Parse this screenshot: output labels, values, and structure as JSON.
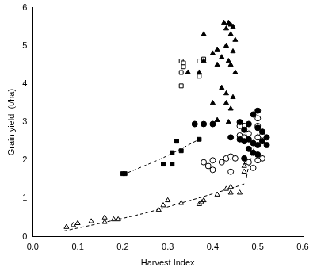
{
  "chart_data": {
    "type": "scatter",
    "x_label": "Harvest Index",
    "y_label": "Grain yield  (t/ha)",
    "xlim": [
      0,
      0.6
    ],
    "xticks": [
      {
        "value": 0,
        "label": "0.0"
      },
      0.1,
      0.2,
      0.3,
      0.4,
      0.5,
      0.6
    ],
    "ylim": [
      0,
      6
    ],
    "yticks": [
      0,
      1,
      2,
      3,
      4,
      5,
      6
    ],
    "grid": false,
    "series": [
      {
        "type": "scatter",
        "marker": "triangle-filled",
        "color": "#000000",
        "x": [
          0.425,
          0.435,
          0.44,
          0.445,
          0.43,
          0.38,
          0.44,
          0.45,
          0.43,
          0.41,
          0.445,
          0.42,
          0.435,
          0.38,
          0.41,
          0.44,
          0.37,
          0.45,
          0.42,
          0.43,
          0.445,
          0.4,
          0.43,
          0.44,
          0.41,
          0.435,
          0.345,
          0.4
        ],
        "values": [
          5.6,
          5.6,
          5.55,
          5.5,
          5.45,
          5.3,
          5.3,
          5.15,
          5.0,
          4.9,
          4.85,
          4.7,
          4.6,
          4.6,
          4.5,
          4.5,
          4.3,
          4.3,
          3.9,
          3.75,
          3.65,
          3.5,
          3.5,
          3.35,
          3.05,
          3.0,
          4.3,
          4.8
        ]
      },
      {
        "type": "scatter",
        "marker": "square-open",
        "color": "#000000",
        "x": [
          0.33,
          0.335,
          0.335,
          0.33,
          0.33,
          0.37,
          0.38,
          0.37
        ],
        "values": [
          4.6,
          4.55,
          4.45,
          4.3,
          3.95,
          4.6,
          4.65,
          4.2
        ]
      },
      {
        "type": "scatter",
        "marker": "circle-filled",
        "color": "#000000",
        "x": [
          0.36,
          0.38,
          0.4,
          0.46,
          0.48,
          0.49,
          0.5,
          0.47,
          0.5,
          0.44,
          0.46,
          0.47,
          0.48,
          0.49,
          0.5,
          0.51,
          0.52,
          0.48,
          0.49,
          0.5,
          0.47,
          0.52,
          0.51
        ],
        "values": [
          2.95,
          2.95,
          2.95,
          3.0,
          2.95,
          3.2,
          3.3,
          2.8,
          2.85,
          2.6,
          2.55,
          2.5,
          2.55,
          2.45,
          2.4,
          2.5,
          2.4,
          2.3,
          2.2,
          2.15,
          2.05,
          2.6,
          2.75
        ]
      },
      {
        "type": "scatter",
        "marker": "circle-open",
        "color": "#000000",
        "x": [
          0.38,
          0.39,
          0.4,
          0.4,
          0.42,
          0.43,
          0.44,
          0.45,
          0.44,
          0.46,
          0.47,
          0.47,
          0.48,
          0.5,
          0.5,
          0.51,
          0.5,
          0.51,
          0.5,
          0.48,
          0.49,
          0.46
        ],
        "values": [
          1.95,
          1.85,
          1.75,
          2.0,
          1.95,
          2.05,
          2.1,
          2.05,
          1.7,
          2.65,
          2.6,
          2.9,
          2.7,
          3.1,
          2.9,
          2.65,
          2.6,
          2.05,
          2.0,
          1.95,
          1.8,
          2.9
        ]
      },
      {
        "type": "scatter",
        "marker": "square-filled",
        "color": "#000000",
        "x": [
          0.2,
          0.205,
          0.29,
          0.31,
          0.31,
          0.33,
          0.32,
          0.37
        ],
        "values": [
          1.65,
          1.65,
          1.9,
          1.9,
          2.2,
          2.25,
          2.5,
          2.55
        ]
      },
      {
        "type": "scatter",
        "marker": "triangle-open",
        "color": "#000000",
        "x": [
          0.075,
          0.09,
          0.1,
          0.13,
          0.16,
          0.16,
          0.18,
          0.19,
          0.28,
          0.29,
          0.3,
          0.33,
          0.37,
          0.375,
          0.38,
          0.41,
          0.43,
          0.44,
          0.44,
          0.47,
          0.47,
          0.475,
          0.46
        ],
        "values": [
          0.25,
          0.3,
          0.35,
          0.4,
          0.38,
          0.5,
          0.45,
          0.45,
          0.7,
          0.82,
          0.95,
          0.88,
          0.85,
          0.9,
          0.95,
          1.1,
          1.25,
          1.3,
          1.15,
          1.7,
          1.85,
          1.95,
          1.15
        ]
      },
      {
        "type": "line",
        "line_style": "dashed",
        "marker": "none",
        "color": "#000000",
        "x": [
          0.2,
          0.29,
          0.37
        ],
        "values": [
          1.62,
          2.07,
          2.55
        ]
      },
      {
        "type": "line",
        "line_style": "dashed",
        "marker": "none",
        "color": "#000000",
        "x": [
          0.07,
          0.15,
          0.25,
          0.35,
          0.45,
          0.47
        ],
        "values": [
          0.15,
          0.35,
          0.62,
          0.95,
          1.3,
          1.38
        ]
      },
      {
        "type": "line",
        "line_style": "dashed",
        "marker": "none",
        "color": "#000000",
        "x": [
          0.475,
          0.48,
          0.49,
          0.5
        ],
        "values": [
          1.55,
          1.85,
          2.25,
          2.7
        ]
      }
    ]
  }
}
